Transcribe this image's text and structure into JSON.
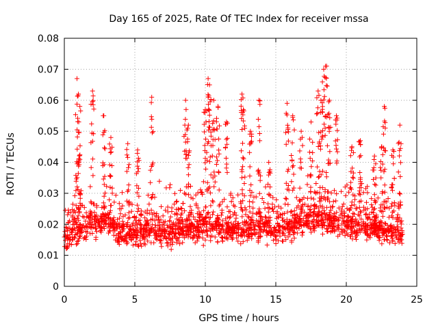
{
  "chart_data": {
    "type": "scatter",
    "title": "Day 165 of 2025, Rate Of TEC Index for receiver mssa",
    "xlabel": "GPS time / hours",
    "ylabel": "ROTI / TECUs",
    "xlim": [
      0,
      25
    ],
    "ylim": [
      0,
      0.08
    ],
    "xticks": [
      "0",
      "5",
      "10",
      "15",
      "20",
      "25"
    ],
    "yticks": [
      "0",
      "0.01",
      "0.02",
      "0.03",
      "0.04",
      "0.05",
      "0.06",
      "0.07",
      "0.08"
    ],
    "grid": true,
    "marker": "+",
    "color": "#ff0000",
    "series": [
      {
        "name": "ROTI",
        "x_range": [
          0,
          24
        ],
        "baseline": [
          [
            0,
            0.016
          ],
          [
            1,
            0.018
          ],
          [
            2,
            0.02
          ],
          [
            3,
            0.021
          ],
          [
            4,
            0.018
          ],
          [
            5,
            0.017
          ],
          [
            6,
            0.018
          ],
          [
            7,
            0.017
          ],
          [
            8,
            0.018
          ],
          [
            9,
            0.019
          ],
          [
            10,
            0.02
          ],
          [
            11,
            0.019
          ],
          [
            12,
            0.018
          ],
          [
            13,
            0.019
          ],
          [
            14,
            0.019
          ],
          [
            15,
            0.018
          ],
          [
            16,
            0.02
          ],
          [
            17,
            0.021
          ],
          [
            18,
            0.022
          ],
          [
            19,
            0.021
          ],
          [
            20,
            0.02
          ],
          [
            21,
            0.019
          ],
          [
            22,
            0.019
          ],
          [
            23,
            0.018
          ],
          [
            24,
            0.017
          ]
        ],
        "peaks": [
          [
            0.9,
            0.067
          ],
          [
            1.0,
            0.062
          ],
          [
            1.1,
            0.058
          ],
          [
            2.0,
            0.063
          ],
          [
            2.8,
            0.055
          ],
          [
            3.3,
            0.048
          ],
          [
            4.5,
            0.046
          ],
          [
            5.2,
            0.044
          ],
          [
            6.2,
            0.061
          ],
          [
            8.6,
            0.06
          ],
          [
            8.8,
            0.052
          ],
          [
            10.0,
            0.057
          ],
          [
            10.2,
            0.067
          ],
          [
            10.3,
            0.065
          ],
          [
            10.6,
            0.06
          ],
          [
            10.9,
            0.058
          ],
          [
            11.5,
            0.053
          ],
          [
            12.6,
            0.062
          ],
          [
            12.7,
            0.057
          ],
          [
            13.2,
            0.05
          ],
          [
            13.8,
            0.06
          ],
          [
            14.5,
            0.04
          ],
          [
            15.8,
            0.059
          ],
          [
            16.2,
            0.055
          ],
          [
            16.8,
            0.05
          ],
          [
            17.5,
            0.053
          ],
          [
            18.0,
            0.063
          ],
          [
            18.2,
            0.06
          ],
          [
            18.4,
            0.07
          ],
          [
            18.6,
            0.071
          ],
          [
            18.8,
            0.06
          ],
          [
            19.3,
            0.055
          ],
          [
            20.4,
            0.045
          ],
          [
            21.0,
            0.047
          ],
          [
            22.0,
            0.042
          ],
          [
            22.5,
            0.045
          ],
          [
            22.7,
            0.058
          ],
          [
            23.3,
            0.044
          ],
          [
            23.8,
            0.052
          ]
        ]
      }
    ]
  }
}
